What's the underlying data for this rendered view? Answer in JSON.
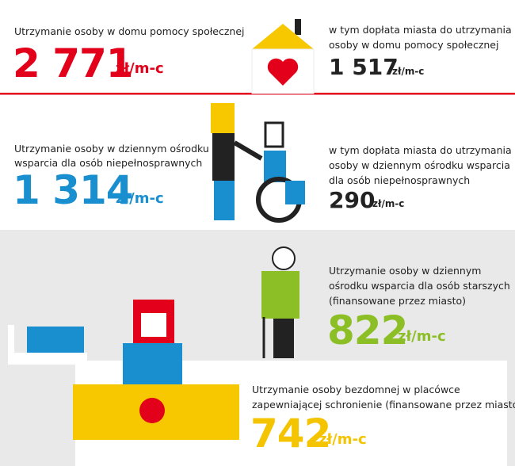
{
  "sections": [
    {
      "label": [
        "Utrzymanie osoby w domu pomocy społecznej"
      ],
      "amount": "2 771",
      "unit": "zł/m-c",
      "subsidy": {
        "label": [
          "w tym dopłata miasta do utrzymania",
          "osoby w domu pomocy społecznej"
        ],
        "amount": "1 517",
        "unit": "zł/m-c"
      }
    },
    {
      "label": [
        "Utrzymanie osoby w dziennym ośrodku",
        "wsparcia dla osób niepełnosprawnych"
      ],
      "amount": "1 314",
      "unit": "zł/m-c",
      "subsidy": {
        "label": [
          "w tym dopłata miasta do utrzymania",
          "osoby w dziennym ośrodku wsparcia",
          "dla osób niepełnosprawnych"
        ],
        "amount": "290",
        "unit": "zł/m-c"
      }
    },
    {
      "label": [
        "Utrzymanie osoby w dziennym",
        "ośrodku wsparcia dla osób starszych",
        "(finansowane przez miasto)"
      ],
      "amount": "822",
      "unit": "zł/m-c"
    },
    {
      "label": [
        "Utrzymanie osoby bezdomnej w placówce",
        "zapewniającej schronienie (finansowane przez miasto)"
      ],
      "amount": "742",
      "unit": "zł/m-c"
    }
  ]
}
